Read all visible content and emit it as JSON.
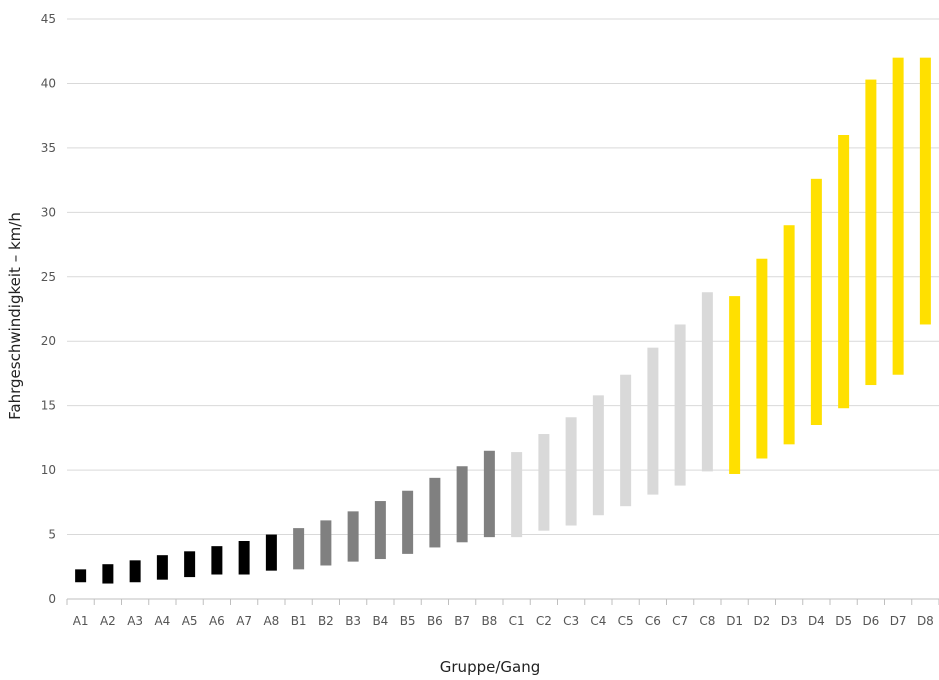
{
  "chart_data": {
    "type": "bar",
    "subtype": "floating-range",
    "title": "",
    "xlabel": "Gruppe/Gang",
    "ylabel": "Fahrgeschwindigkeit – km/h",
    "ylim": [
      0,
      45
    ],
    "yticks": [
      0,
      5,
      10,
      15,
      20,
      25,
      30,
      35,
      40,
      45
    ],
    "grid": true,
    "legend": "none",
    "categories": [
      "A1",
      "A2",
      "A3",
      "A4",
      "A5",
      "A6",
      "A7",
      "A8",
      "B1",
      "B2",
      "B3",
      "B4",
      "B5",
      "B6",
      "B7",
      "B8",
      "C1",
      "C2",
      "C3",
      "C4",
      "C5",
      "C6",
      "C7",
      "C8",
      "D1",
      "D2",
      "D3",
      "D4",
      "D5",
      "D6",
      "D7",
      "D8"
    ],
    "groups": [
      {
        "group": "A",
        "color": "#000000"
      },
      {
        "group": "B",
        "color": "#808080"
      },
      {
        "group": "C",
        "color": "#d9d9d9"
      },
      {
        "group": "D",
        "color": "#ffe000"
      }
    ],
    "ranges": [
      [
        1.3,
        2.3
      ],
      [
        1.2,
        2.7
      ],
      [
        1.3,
        3.0
      ],
      [
        1.5,
        3.4
      ],
      [
        1.7,
        3.7
      ],
      [
        1.9,
        4.1
      ],
      [
        1.9,
        4.5
      ],
      [
        2.2,
        5.0
      ],
      [
        2.3,
        5.5
      ],
      [
        2.6,
        6.1
      ],
      [
        2.9,
        6.8
      ],
      [
        3.1,
        7.6
      ],
      [
        3.5,
        8.4
      ],
      [
        4.0,
        9.4
      ],
      [
        4.4,
        10.3
      ],
      [
        4.8,
        11.5
      ],
      [
        4.8,
        11.4
      ],
      [
        5.3,
        12.8
      ],
      [
        5.7,
        14.1
      ],
      [
        6.5,
        15.8
      ],
      [
        7.2,
        17.4
      ],
      [
        8.1,
        19.5
      ],
      [
        8.8,
        21.3
      ],
      [
        9.9,
        23.8
      ],
      [
        9.7,
        23.5
      ],
      [
        10.9,
        26.4
      ],
      [
        12.0,
        29.0
      ],
      [
        13.5,
        32.6
      ],
      [
        14.8,
        36.0
      ],
      [
        16.6,
        40.3
      ],
      [
        17.4,
        42.0
      ],
      [
        21.3,
        42.0
      ]
    ]
  }
}
